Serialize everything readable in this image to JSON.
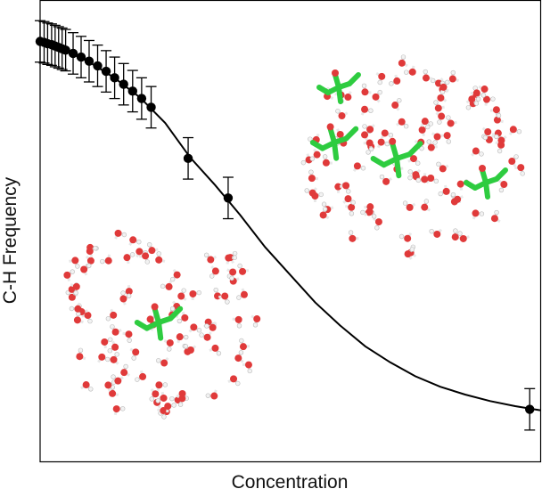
{
  "chart_data": {
    "type": "scatter",
    "title": "",
    "xlabel": "Concentration",
    "ylabel": "C-H Frequency",
    "xlim": [
      0,
      1
    ],
    "ylim": [
      0,
      1
    ],
    "grid": false,
    "legend": "none",
    "ticks": "none",
    "series": [
      {
        "marker": "filled-circle",
        "color": "#000000",
        "points": [
          {
            "x": 0.0,
            "y": 0.912,
            "err": 0.045
          },
          {
            "x": 0.008,
            "y": 0.91,
            "err": 0.045
          },
          {
            "x": 0.015,
            "y": 0.907,
            "err": 0.045
          },
          {
            "x": 0.023,
            "y": 0.905,
            "err": 0.045
          },
          {
            "x": 0.03,
            "y": 0.902,
            "err": 0.045
          },
          {
            "x": 0.037,
            "y": 0.899,
            "err": 0.045
          },
          {
            "x": 0.044,
            "y": 0.896,
            "err": 0.045
          },
          {
            "x": 0.051,
            "y": 0.893,
            "err": 0.045
          },
          {
            "x": 0.066,
            "y": 0.886,
            "err": 0.045
          },
          {
            "x": 0.082,
            "y": 0.878,
            "err": 0.045
          },
          {
            "x": 0.098,
            "y": 0.869,
            "err": 0.045
          },
          {
            "x": 0.115,
            "y": 0.859,
            "err": 0.045
          },
          {
            "x": 0.132,
            "y": 0.847,
            "err": 0.045
          },
          {
            "x": 0.149,
            "y": 0.833,
            "err": 0.045
          },
          {
            "x": 0.167,
            "y": 0.819,
            "err": 0.045
          },
          {
            "x": 0.185,
            "y": 0.804,
            "err": 0.045
          },
          {
            "x": 0.203,
            "y": 0.788,
            "err": 0.045
          },
          {
            "x": 0.222,
            "y": 0.769,
            "err": 0.045
          },
          {
            "x": 0.296,
            "y": 0.658,
            "err": 0.045
          },
          {
            "x": 0.376,
            "y": 0.572,
            "err": 0.045
          },
          {
            "x": 0.979,
            "y": 0.113,
            "err": 0.045
          }
        ]
      }
    ],
    "fit_curve": {
      "color": "#000000",
      "points": [
        {
          "x": 0.0,
          "y": 0.912
        },
        {
          "x": 0.05,
          "y": 0.893
        },
        {
          "x": 0.1,
          "y": 0.866
        },
        {
          "x": 0.15,
          "y": 0.832
        },
        {
          "x": 0.2,
          "y": 0.79
        },
        {
          "x": 0.25,
          "y": 0.735
        },
        {
          "x": 0.3,
          "y": 0.66
        },
        {
          "x": 0.35,
          "y": 0.6
        },
        {
          "x": 0.4,
          "y": 0.535
        },
        {
          "x": 0.45,
          "y": 0.465
        },
        {
          "x": 0.5,
          "y": 0.405
        },
        {
          "x": 0.55,
          "y": 0.345
        },
        {
          "x": 0.6,
          "y": 0.295
        },
        {
          "x": 0.65,
          "y": 0.25
        },
        {
          "x": 0.7,
          "y": 0.215
        },
        {
          "x": 0.75,
          "y": 0.185
        },
        {
          "x": 0.8,
          "y": 0.162
        },
        {
          "x": 0.85,
          "y": 0.145
        },
        {
          "x": 0.9,
          "y": 0.131
        },
        {
          "x": 0.95,
          "y": 0.12
        },
        {
          "x": 1.0,
          "y": 0.111
        }
      ]
    },
    "insets": [
      {
        "name": "dilute-solution-snapshot",
        "description_icon": "molecule-cluster-icon",
        "solute_color": "#2ecc40",
        "water_color": "#e03a3a",
        "hydrogen_color": "#f2f2f2"
      },
      {
        "name": "concentrated-solution-snapshot",
        "description_icon": "molecule-cluster-icon",
        "solute_color": "#2ecc40",
        "water_color": "#e03a3a",
        "hydrogen_color": "#f2f2f2"
      }
    ]
  }
}
